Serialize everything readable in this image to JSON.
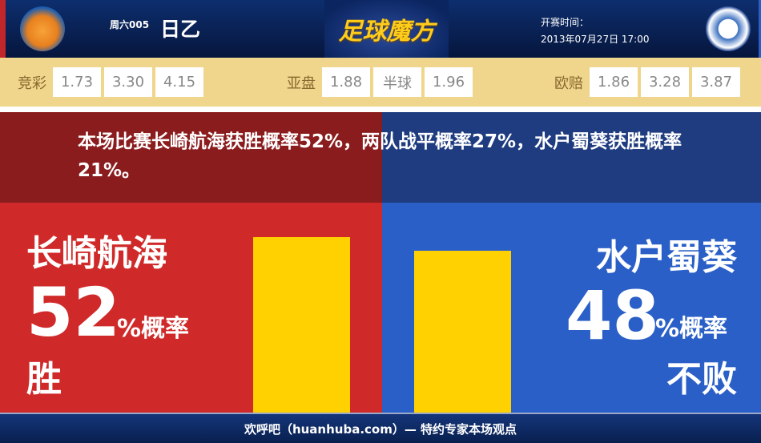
{
  "header": {
    "home_logo": "v-varen-nagasaki-logo",
    "away_logo": "mito-hollyhock-logo",
    "round": "周六005",
    "league": "日乙",
    "brand": "足球魔方",
    "kickoff_label": "开赛时间：",
    "kickoff_time": "2013年07月27日 17:00"
  },
  "odds": {
    "jingcai": {
      "label": "竞彩",
      "values": [
        "1.73",
        "3.30",
        "4.15"
      ]
    },
    "asian": {
      "label": "亚盘",
      "values": [
        "1.88",
        "半球",
        "1.96"
      ]
    },
    "euro": {
      "label": "欧赔",
      "values": [
        "1.86",
        "3.28",
        "3.87"
      ]
    }
  },
  "summary": "本场比赛长崎航海获胜概率52%，两队战平概率27%，水户蜀葵获胜概率21%。",
  "home": {
    "name": "长崎航海",
    "percent": "52",
    "unit": "%概率",
    "result": "胜",
    "color": "#cf2a29"
  },
  "away": {
    "name": "水户蜀葵",
    "percent": "48",
    "unit": "%概率",
    "result": "不败",
    "color": "#2a5fc7"
  },
  "chart_data": {
    "type": "bar",
    "categories": [
      "长崎航海",
      "水户蜀葵"
    ],
    "values": [
      52,
      48
    ],
    "bar_color": "#ffd100"
  },
  "footer": "欢呼吧（huanhuba.com）— 特约专家本场观点"
}
